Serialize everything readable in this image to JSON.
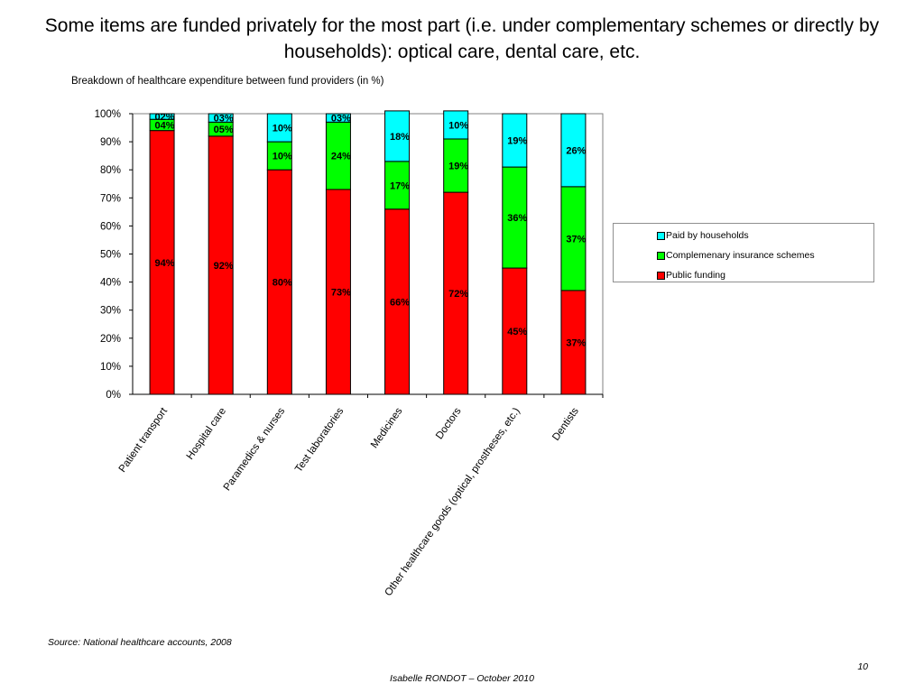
{
  "slide": {
    "title": "Some items are funded privately for the most part (i.e. under complementary schemes or directly by households): optical care, dental care, etc.",
    "source": "Source: National healthcare accounts, 2008",
    "page_number": "10",
    "footer": "Isabelle RONDOT – October 2010"
  },
  "chart_data": {
    "type": "bar",
    "stacked": true,
    "title": "Breakdown of healthcare expenditure between fund providers (in %)",
    "xlabel": "",
    "ylabel": "",
    "ylim": [
      0,
      100
    ],
    "yticks": [
      "0%",
      "10%",
      "20%",
      "30%",
      "40%",
      "50%",
      "60%",
      "70%",
      "80%",
      "90%",
      "100%"
    ],
    "legend_position": "right",
    "grid": false,
    "categories": [
      "Patient transport",
      "Hospital care",
      "Paramedics & nurses",
      "Test laboratories",
      "Medicines",
      "Doctors",
      "Other healthcare goods (optical, prostheses, etc.)",
      "Dentists"
    ],
    "series": [
      {
        "name": "Public funding",
        "color": "#ff0000",
        "values": [
          94,
          92,
          80,
          73,
          66,
          72,
          45,
          37
        ],
        "labels": [
          "94%",
          "92%",
          "80%",
          "73%",
          "66%",
          "72%",
          "45%",
          "37%"
        ]
      },
      {
        "name": "Complemenary insurance schemes",
        "color": "#00ff00",
        "values": [
          4,
          5,
          10,
          24,
          17,
          19,
          36,
          37
        ],
        "labels": [
          "04%",
          "05%",
          "10%",
          "24%",
          "17%",
          "19%",
          "36%",
          "37%"
        ]
      },
      {
        "name": "Paid by households",
        "color": "#00ffff",
        "values": [
          2,
          3,
          10,
          3,
          18,
          10,
          19,
          26
        ],
        "labels": [
          "02%",
          "03%",
          "10%",
          "03%",
          "18%",
          "10%",
          "19%",
          "26%"
        ]
      }
    ],
    "legend_order": [
      "Paid by households",
      "Complemenary insurance schemes",
      "Public funding"
    ]
  }
}
